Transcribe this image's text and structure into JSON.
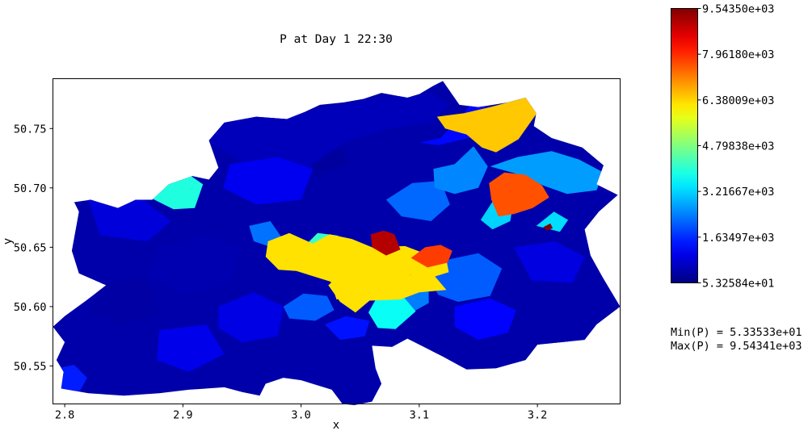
{
  "chart_data": {
    "type": "heatmap",
    "title": "P at Day 1 22:30",
    "xlabel": "x",
    "ylabel": "y",
    "xlim": [
      2.79,
      3.27
    ],
    "ylim": [
      50.518,
      50.792
    ],
    "xticks": [
      "2.8",
      "2.9",
      "3.0",
      "3.1",
      "3.2"
    ],
    "xtick_values": [
      2.8,
      2.9,
      3.0,
      3.1,
      3.2
    ],
    "yticks": [
      "50.55",
      "50.60",
      "50.65",
      "50.70",
      "50.75"
    ],
    "ytick_values": [
      50.55,
      50.6,
      50.65,
      50.7,
      50.75
    ],
    "grid": false,
    "colormap": "jet",
    "colorbar": {
      "min": 53.2584,
      "max": 9543.5,
      "ticks": [
        "5.32584e+01",
        "1.63497e+03",
        "3.21667e+03",
        "4.79838e+03",
        "6.38009e+03",
        "7.96180e+03",
        "9.54350e+03"
      ],
      "tick_values": [
        53.2584,
        1634.97,
        3216.67,
        4798.38,
        6380.09,
        7961.8,
        9543.5
      ]
    },
    "stats": {
      "min_label": "Min(P) = 5.33533e+01",
      "max_label": "Max(P) = 9.54341e+03"
    },
    "regions": [
      {
        "value": 6250,
        "polygon": [
          [
            2.972,
            50.655
          ],
          [
            2.99,
            50.662
          ],
          [
            3.01,
            50.653
          ],
          [
            3.024,
            50.661
          ],
          [
            3.043,
            50.657
          ],
          [
            3.06,
            50.65
          ],
          [
            3.088,
            50.651
          ],
          [
            3.104,
            50.645
          ],
          [
            3.122,
            50.645
          ],
          [
            3.125,
            50.629
          ],
          [
            3.112,
            50.625
          ],
          [
            3.092,
            50.627
          ],
          [
            3.076,
            50.622
          ],
          [
            3.058,
            50.617
          ],
          [
            3.046,
            50.611
          ],
          [
            3.03,
            50.606
          ],
          [
            3.025,
            50.621
          ],
          [
            2.996,
            50.63
          ],
          [
            2.981,
            50.631
          ],
          [
            2.97,
            50.642
          ]
        ]
      },
      {
        "value": 6250,
        "polygon": [
          [
            3.035,
            50.628
          ],
          [
            3.063,
            50.625
          ],
          [
            3.082,
            50.627
          ],
          [
            3.112,
            50.627
          ],
          [
            3.123,
            50.614
          ],
          [
            3.1,
            50.612
          ],
          [
            3.084,
            50.606
          ],
          [
            3.058,
            50.605
          ],
          [
            3.046,
            50.595
          ],
          [
            3.033,
            50.604
          ],
          [
            3.023,
            50.618
          ]
        ]
      },
      {
        "value": 6500,
        "polygon": [
          [
            3.115,
            50.76
          ],
          [
            3.138,
            50.763
          ],
          [
            3.16,
            50.768
          ],
          [
            3.19,
            50.776
          ],
          [
            3.201,
            50.765
          ],
          [
            3.184,
            50.741
          ],
          [
            3.165,
            50.73
          ],
          [
            3.153,
            50.734
          ],
          [
            3.14,
            50.745
          ],
          [
            3.122,
            50.75
          ]
        ]
      },
      {
        "value": 7600,
        "polygon": [
          [
            3.167,
            50.676
          ],
          [
            3.18,
            50.678
          ],
          [
            3.196,
            50.683
          ],
          [
            3.21,
            50.692
          ],
          [
            3.204,
            50.702
          ],
          [
            3.19,
            50.711
          ],
          [
            3.172,
            50.713
          ],
          [
            3.159,
            50.704
          ],
          [
            3.161,
            50.69
          ]
        ]
      },
      {
        "value": 7800,
        "polygon": [
          [
            3.093,
            50.641
          ],
          [
            3.105,
            50.65
          ],
          [
            3.118,
            50.652
          ],
          [
            3.128,
            50.647
          ],
          [
            3.124,
            50.637
          ],
          [
            3.107,
            50.633
          ]
        ]
      },
      {
        "value": 9050,
        "polygon": [
          [
            3.059,
            50.661
          ],
          [
            3.07,
            50.664
          ],
          [
            3.079,
            50.661
          ],
          [
            3.084,
            50.648
          ],
          [
            3.072,
            50.643
          ],
          [
            3.06,
            50.65
          ]
        ]
      },
      {
        "value": 9543,
        "polygon": [
          [
            3.205,
            50.667
          ],
          [
            3.211,
            50.67
          ],
          [
            3.213,
            50.666
          ],
          [
            3.208,
            50.664
          ]
        ]
      },
      {
        "value": 3900,
        "polygon": [
          [
            2.883,
            50.707
          ],
          [
            2.904,
            50.712
          ],
          [
            2.917,
            50.703
          ],
          [
            2.91,
            50.683
          ],
          [
            2.892,
            50.682
          ],
          [
            2.872,
            50.692
          ]
        ]
      },
      {
        "value": 4100,
        "polygon": [
          [
            3.002,
            50.65
          ],
          [
            3.014,
            50.662
          ],
          [
            3.03,
            50.66
          ],
          [
            3.044,
            50.655
          ],
          [
            3.035,
            50.641
          ],
          [
            3.016,
            50.638
          ]
        ]
      },
      {
        "value": 3700,
        "polygon": [
          [
            3.057,
            50.595
          ],
          [
            3.066,
            50.611
          ],
          [
            3.086,
            50.609
          ],
          [
            3.097,
            50.596
          ],
          [
            3.08,
            50.581
          ],
          [
            3.065,
            50.582
          ]
        ]
      },
      {
        "value": 3200,
        "polygon": [
          [
            3.152,
            50.673
          ],
          [
            3.165,
            50.693
          ],
          [
            3.18,
            50.69
          ],
          [
            3.177,
            50.672
          ],
          [
            3.162,
            50.665
          ]
        ]
      },
      {
        "value": 3300,
        "polygon": [
          [
            3.199,
            50.668
          ],
          [
            3.214,
            50.68
          ],
          [
            3.226,
            50.673
          ],
          [
            3.219,
            50.663
          ]
        ]
      },
      {
        "value": 2700,
        "polygon": [
          [
            3.16,
            50.718
          ],
          [
            3.183,
            50.726
          ],
          [
            3.212,
            50.731
          ],
          [
            3.235,
            50.724
          ],
          [
            3.256,
            50.713
          ],
          [
            3.25,
            50.698
          ],
          [
            3.225,
            50.695
          ],
          [
            3.205,
            50.702
          ],
          [
            3.182,
            50.712
          ]
        ]
      },
      {
        "value": 2500,
        "polygon": [
          [
            3.112,
            50.716
          ],
          [
            3.13,
            50.72
          ],
          [
            3.146,
            50.735
          ],
          [
            3.158,
            50.718
          ],
          [
            3.15,
            50.7
          ],
          [
            3.13,
            50.695
          ],
          [
            3.113,
            50.7
          ]
        ]
      },
      {
        "value": 2400,
        "polygon": [
          [
            3.066,
            50.615
          ],
          [
            3.086,
            50.622
          ],
          [
            3.108,
            50.615
          ],
          [
            3.108,
            50.603
          ],
          [
            3.09,
            50.593
          ],
          [
            3.07,
            50.6
          ]
        ]
      },
      {
        "value": 2200,
        "polygon": [
          [
            3.072,
            50.69
          ],
          [
            3.094,
            50.704
          ],
          [
            3.118,
            50.706
          ],
          [
            3.126,
            50.686
          ],
          [
            3.11,
            50.672
          ],
          [
            3.085,
            50.676
          ]
        ]
      },
      {
        "value": 2300,
        "polygon": [
          [
            2.956,
            50.668
          ],
          [
            2.974,
            50.672
          ],
          [
            2.983,
            50.659
          ],
          [
            2.975,
            50.65
          ],
          [
            2.96,
            50.655
          ]
        ]
      },
      {
        "value": 2100,
        "polygon": [
          [
            2.985,
            50.6
          ],
          [
            3.002,
            50.611
          ],
          [
            3.022,
            50.609
          ],
          [
            3.028,
            50.597
          ],
          [
            3.012,
            50.588
          ],
          [
            2.99,
            50.59
          ]
        ]
      },
      {
        "value": 2100,
        "polygon": [
          [
            3.108,
            50.625
          ],
          [
            3.126,
            50.64
          ],
          [
            3.15,
            50.645
          ],
          [
            3.17,
            50.632
          ],
          [
            3.16,
            50.609
          ],
          [
            3.133,
            50.604
          ],
          [
            3.116,
            50.61
          ]
        ]
      },
      {
        "value": 1500,
        "polygon": [
          [
            2.794,
            50.548
          ],
          [
            2.808,
            50.551
          ],
          [
            2.819,
            50.54
          ],
          [
            2.813,
            50.529
          ],
          [
            2.797,
            50.528
          ]
        ]
      },
      {
        "value": 1400,
        "polygon": [
          [
            3.02,
            50.585
          ],
          [
            3.038,
            50.592
          ],
          [
            3.058,
            50.588
          ],
          [
            3.054,
            50.575
          ],
          [
            3.033,
            50.572
          ]
        ]
      },
      {
        "value": 1300,
        "polygon": [
          [
            3.1,
            50.738
          ],
          [
            3.118,
            50.742
          ],
          [
            3.135,
            50.76
          ],
          [
            3.148,
            50.775
          ],
          [
            3.16,
            50.763
          ],
          [
            3.142,
            50.742
          ],
          [
            3.116,
            50.736
          ]
        ]
      },
      {
        "value": 1100,
        "polygon": [
          [
            2.94,
            50.72
          ],
          [
            2.98,
            50.726
          ],
          [
            3.01,
            50.716
          ],
          [
            3.0,
            50.69
          ],
          [
            2.962,
            50.686
          ],
          [
            2.934,
            50.7
          ]
        ]
      },
      {
        "value": 1000,
        "polygon": [
          [
            2.93,
            50.6
          ],
          [
            2.96,
            50.612
          ],
          [
            2.985,
            50.6
          ],
          [
            2.98,
            50.575
          ],
          [
            2.95,
            50.57
          ],
          [
            2.93,
            50.582
          ]
        ]
      },
      {
        "value": 1250,
        "polygon": [
          [
            3.13,
            50.6
          ],
          [
            3.16,
            50.607
          ],
          [
            3.182,
            50.597
          ],
          [
            3.175,
            50.578
          ],
          [
            3.15,
            50.572
          ],
          [
            3.13,
            50.583
          ]
        ]
      },
      {
        "value": 900,
        "polygon": [
          [
            2.82,
            50.69
          ],
          [
            2.86,
            50.695
          ],
          [
            2.89,
            50.672
          ],
          [
            2.87,
            50.655
          ],
          [
            2.83,
            50.66
          ]
        ]
      },
      {
        "value": 950,
        "polygon": [
          [
            3.18,
            50.65
          ],
          [
            3.215,
            50.655
          ],
          [
            3.24,
            50.642
          ],
          [
            3.23,
            50.62
          ],
          [
            3.195,
            50.622
          ]
        ]
      },
      {
        "value": 1050,
        "polygon": [
          [
            2.88,
            50.58
          ],
          [
            2.92,
            50.585
          ],
          [
            2.935,
            50.56
          ],
          [
            2.905,
            50.545
          ],
          [
            2.878,
            50.555
          ]
        ]
      },
      {
        "value": 600,
        "polygon": [
          [
            2.98,
            50.695
          ],
          [
            3.01,
            50.72
          ],
          [
            3.04,
            50.74
          ],
          [
            3.075,
            50.75
          ],
          [
            3.11,
            50.755
          ],
          [
            3.125,
            50.77
          ],
          [
            3.11,
            50.78
          ],
          [
            3.06,
            50.775
          ],
          [
            3.02,
            50.768
          ],
          [
            2.99,
            50.76
          ],
          [
            2.96,
            50.76
          ],
          [
            2.935,
            50.755
          ],
          [
            2.92,
            50.74
          ],
          [
            2.95,
            50.722
          ]
        ]
      },
      {
        "value": 500,
        "polygon": [
          [
            2.88,
            50.65
          ],
          [
            2.92,
            50.66
          ],
          [
            2.95,
            50.65
          ],
          [
            2.94,
            50.62
          ],
          [
            2.9,
            50.61
          ],
          [
            2.87,
            50.625
          ]
        ]
      },
      {
        "value": 450,
        "polygon": [
          [
            3.11,
            50.565
          ],
          [
            3.15,
            50.572
          ],
          [
            3.19,
            50.565
          ],
          [
            3.22,
            50.59
          ],
          [
            3.25,
            50.6
          ],
          [
            3.268,
            50.598
          ],
          [
            3.25,
            50.58
          ],
          [
            3.215,
            50.566
          ],
          [
            3.18,
            50.555
          ],
          [
            3.14,
            50.548
          ],
          [
            3.11,
            50.553
          ]
        ]
      },
      {
        "value": 400,
        "polygon": [
          [
            2.83,
            50.62
          ],
          [
            2.87,
            50.625
          ],
          [
            2.88,
            50.595
          ],
          [
            2.85,
            50.585
          ],
          [
            2.82,
            50.595
          ]
        ]
      },
      {
        "value": 350,
        "polygon": [
          [
            3.0,
            50.735
          ],
          [
            3.03,
            50.745
          ],
          [
            3.04,
            50.72
          ],
          [
            3.012,
            50.71
          ]
        ]
      }
    ]
  }
}
